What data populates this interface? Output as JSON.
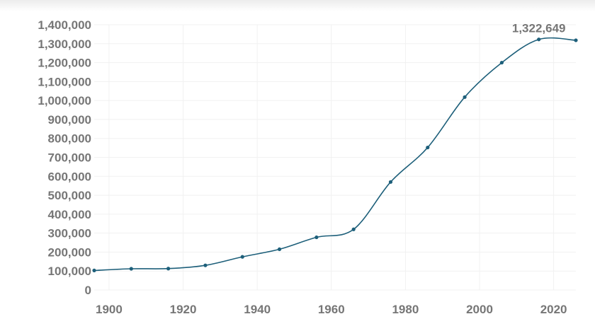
{
  "chart_data": {
    "type": "line",
    "title": "",
    "xlabel": "",
    "ylabel": "",
    "xlim": [
      1896,
      2026
    ],
    "ylim": [
      0,
      1400000
    ],
    "grid": true,
    "x_ticks": [
      "1900",
      "1920",
      "1940",
      "1960",
      "1980",
      "2000",
      "2020"
    ],
    "y_ticks": [
      "0",
      "100,000",
      "200,000",
      "300,000",
      "400,000",
      "500,000",
      "600,000",
      "700,000",
      "800,000",
      "900,000",
      "1,000,000",
      "1,100,000",
      "1,200,000",
      "1,300,000",
      "1,400,000"
    ],
    "series": [
      {
        "color": "#1d5f7a",
        "points": [
          {
            "x": 1896,
            "y": 103000
          },
          {
            "x": 1906,
            "y": 112000
          },
          {
            "x": 1916,
            "y": 113000
          },
          {
            "x": 1926,
            "y": 130000
          },
          {
            "x": 1936,
            "y": 175000
          },
          {
            "x": 1946,
            "y": 215000
          },
          {
            "x": 1956,
            "y": 278000
          },
          {
            "x": 1966,
            "y": 320000
          },
          {
            "x": 1976,
            "y": 570000
          },
          {
            "x": 1986,
            "y": 752000
          },
          {
            "x": 1996,
            "y": 1018000
          },
          {
            "x": 2006,
            "y": 1200000
          },
          {
            "x": 2016,
            "y": 1322649
          },
          {
            "x": 2026,
            "y": 1318000
          }
        ]
      }
    ],
    "annotations": [
      {
        "text": "1,322,649",
        "point_index": 12
      }
    ]
  }
}
